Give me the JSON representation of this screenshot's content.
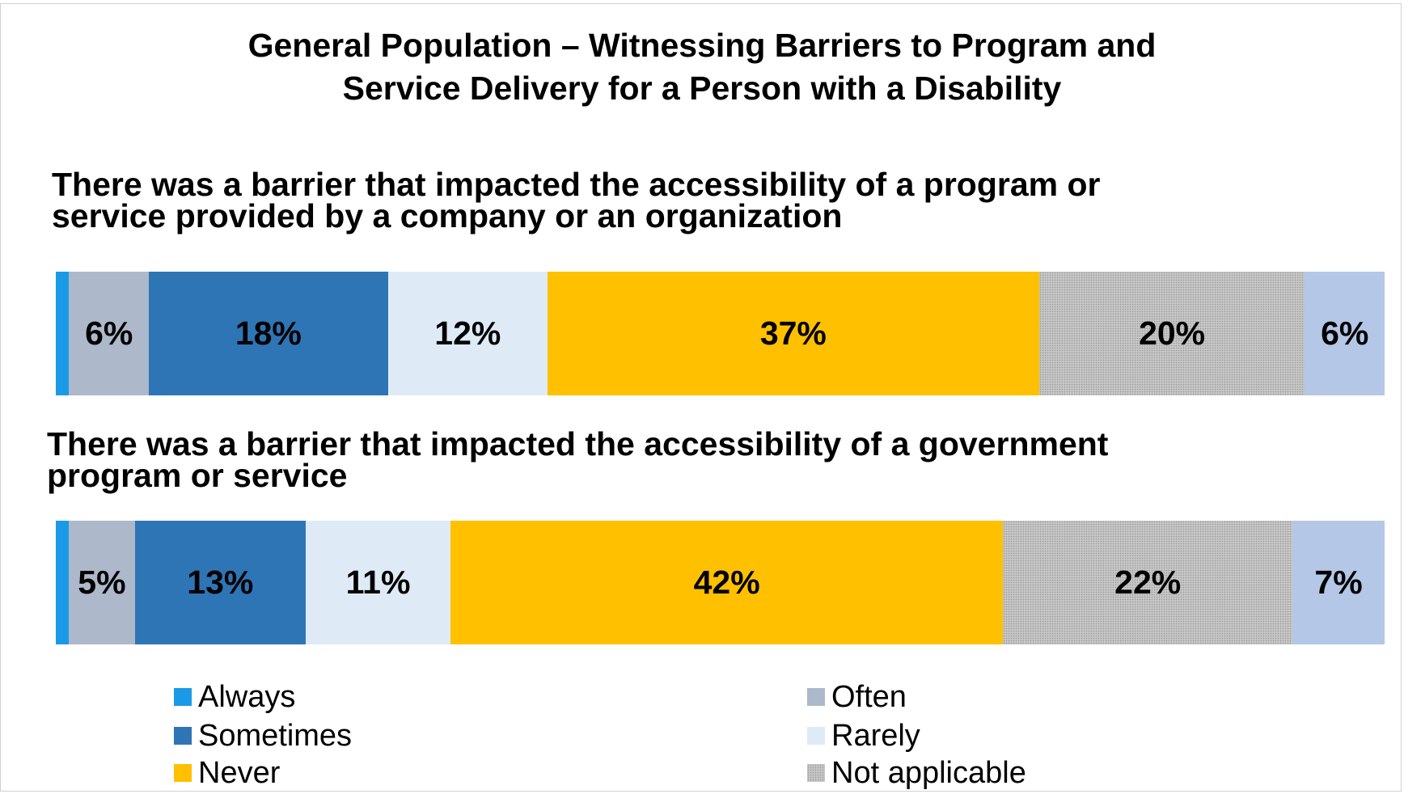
{
  "chart_data": {
    "type": "bar",
    "orientation": "horizontal",
    "stacked": true,
    "percent": true,
    "title": "General Population – Witnessing Barriers to Program and\nService Delivery for a Person with a Disability",
    "categories": [
      "There was a barrier that impacted the accessibility of a program or\nservice provided by a company or an organization",
      "There was a barrier that impacted the accessibility of a government\nprogram or service"
    ],
    "series": [
      {
        "name": "Always",
        "color": "#1a9ae6",
        "values": [
          1,
          1
        ],
        "labels": [
          "",
          ""
        ]
      },
      {
        "name": "Often",
        "color": "#adb9ca",
        "values": [
          6,
          5
        ],
        "labels": [
          "6%",
          "5%"
        ]
      },
      {
        "name": "Sometimes",
        "color": "#2e75b6",
        "values": [
          18,
          13
        ],
        "labels": [
          "18%",
          "13%"
        ]
      },
      {
        "name": "Rarely",
        "color": "#deebf7",
        "values": [
          12,
          11
        ],
        "labels": [
          "12%",
          "11%"
        ]
      },
      {
        "name": "Never",
        "color": "#ffc000",
        "values": [
          37,
          42
        ],
        "labels": [
          "37%",
          "42%"
        ]
      },
      {
        "name": "Not applicable",
        "color": "#c8c8c8",
        "pattern": "dotted",
        "values": [
          20,
          22
        ],
        "labels": [
          "20%",
          "22%"
        ]
      },
      {
        "name": "",
        "color": "#b4c7e7",
        "values": [
          6,
          7
        ],
        "labels": [
          "6%",
          "7%"
        ]
      }
    ],
    "legend_position": "bottom",
    "grid": false
  }
}
